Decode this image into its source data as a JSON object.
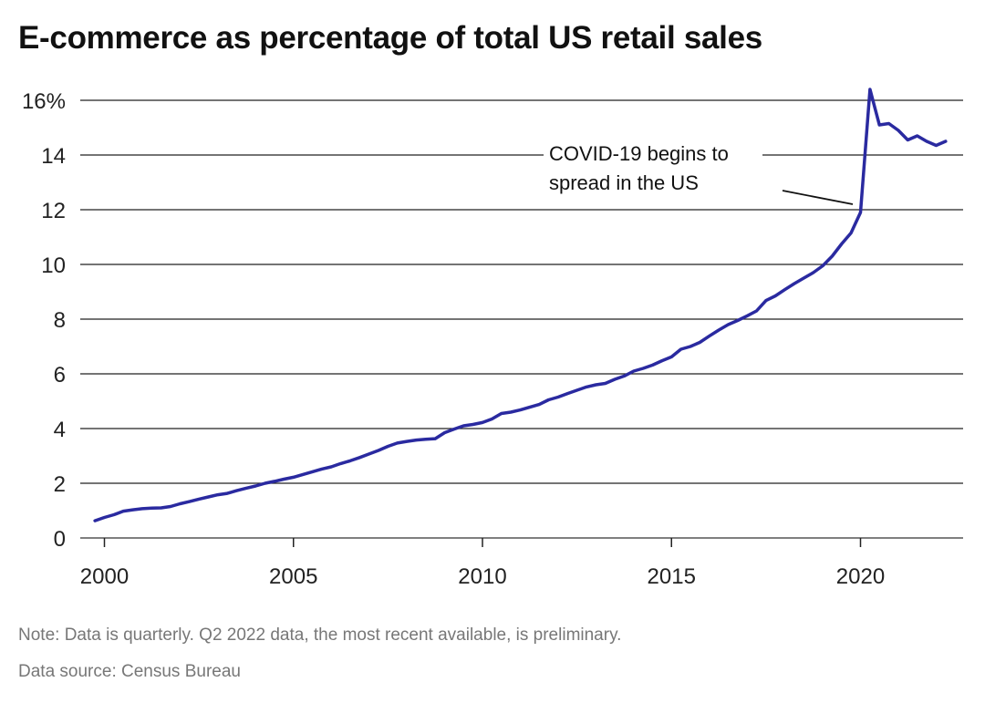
{
  "chart_data": {
    "type": "line",
    "title": "E-commerce as percentage of total US retail sales",
    "xlabel": "",
    "ylabel": "",
    "xlim": [
      2000,
      2022.5
    ],
    "ylim": [
      0,
      16
    ],
    "x_ticks": [
      "2000",
      "2005",
      "2010",
      "2015",
      "2020"
    ],
    "y_ticks": [
      "0",
      "2",
      "4",
      "6",
      "8",
      "10",
      "12",
      "14",
      "16%"
    ],
    "grid": "horizontal",
    "line_color": "#2a2aa0",
    "annotation": {
      "lines": [
        "COVID-19 begins to",
        "spread in the US"
      ],
      "x": 2020.0,
      "y": 11.9
    },
    "series": [
      {
        "x": [
          1999.75,
          2000,
          2000.25,
          2000.5,
          2000.75,
          2001,
          2001.25,
          2001.5,
          2001.75,
          2002,
          2002.25,
          2002.5,
          2002.75,
          2003,
          2003.25,
          2003.5,
          2003.75,
          2004,
          2004.25,
          2004.5,
          2004.75,
          2005,
          2005.25,
          2005.5,
          2005.75,
          2006,
          2006.25,
          2006.5,
          2006.75,
          2007,
          2007.25,
          2007.5,
          2007.75,
          2008,
          2008.25,
          2008.5,
          2008.75,
          2009,
          2009.25,
          2009.5,
          2009.75,
          2010,
          2010.25,
          2010.5,
          2010.75,
          2011,
          2011.25,
          2011.5,
          2011.75,
          2012,
          2012.25,
          2012.5,
          2012.75,
          2013,
          2013.25,
          2013.5,
          2013.75,
          2014,
          2014.25,
          2014.5,
          2014.75,
          2015,
          2015.25,
          2015.5,
          2015.75,
          2016,
          2016.25,
          2016.5,
          2016.75,
          2017,
          2017.25,
          2017.5,
          2017.75,
          2018,
          2018.25,
          2018.5,
          2018.75,
          2019,
          2019.25,
          2019.5,
          2019.75,
          2020,
          2020.25,
          2020.5,
          2020.75,
          2021,
          2021.25,
          2021.5,
          2021.75,
          2022,
          2022.25
        ],
        "values": [
          0.63,
          0.75,
          0.85,
          0.98,
          1.03,
          1.07,
          1.09,
          1.1,
          1.15,
          1.25,
          1.33,
          1.42,
          1.5,
          1.58,
          1.63,
          1.73,
          1.82,
          1.9,
          2.0,
          2.07,
          2.15,
          2.22,
          2.32,
          2.42,
          2.52,
          2.6,
          2.72,
          2.82,
          2.94,
          3.07,
          3.2,
          3.35,
          3.47,
          3.53,
          3.58,
          3.61,
          3.63,
          3.85,
          3.98,
          4.1,
          4.15,
          4.22,
          4.35,
          4.55,
          4.6,
          4.68,
          4.78,
          4.88,
          5.05,
          5.15,
          5.28,
          5.4,
          5.52,
          5.6,
          5.65,
          5.8,
          5.92,
          6.1,
          6.2,
          6.32,
          6.48,
          6.62,
          6.9,
          7.0,
          7.15,
          7.38,
          7.6,
          7.8,
          7.95,
          8.12,
          8.3,
          8.68,
          8.85,
          9.08,
          9.3,
          9.5,
          9.7,
          9.95,
          10.3,
          10.75,
          11.15,
          11.9,
          16.4,
          15.1,
          15.15,
          14.9,
          14.55,
          14.7,
          14.5,
          14.35,
          14.5
        ]
      }
    ]
  },
  "notes": {
    "note": "Note: Data is quarterly. Q2 2022 data, the most recent available, is preliminary.",
    "source": "Data source: Census Bureau"
  }
}
